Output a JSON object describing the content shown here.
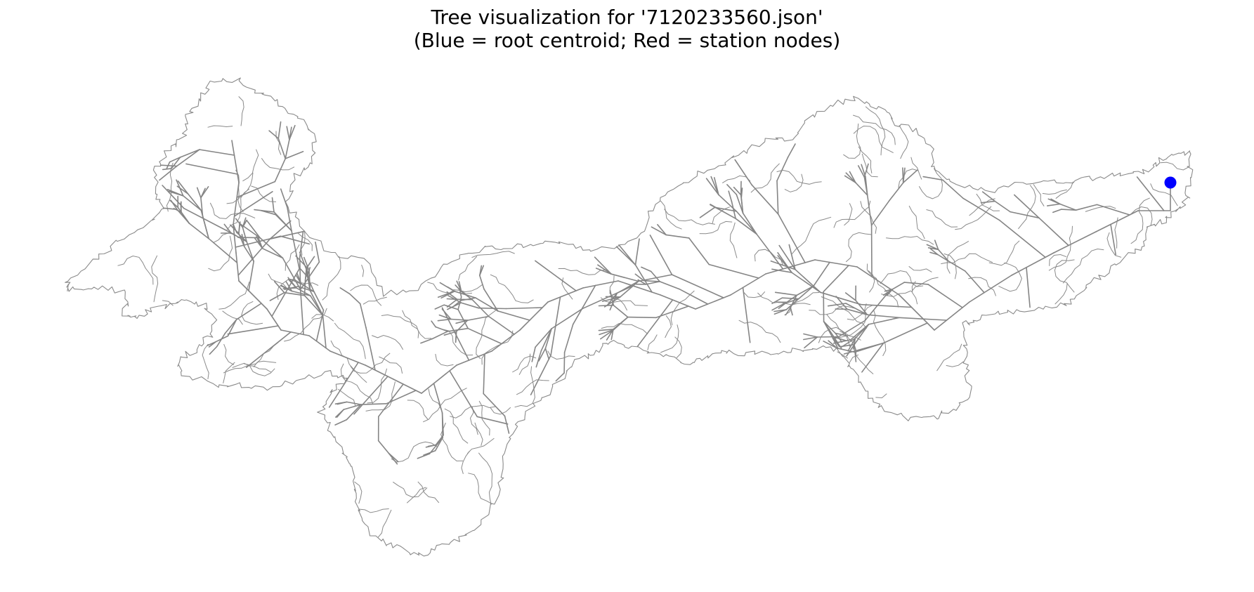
{
  "title": {
    "line1": "Tree visualization for '7120233560.json'",
    "line2": "(Blue = root centroid; Red = station nodes)"
  },
  "colors": {
    "root": "#0000ff",
    "station": "#ff0000",
    "edges": "#858585",
    "boundaries": "#8a8a8a"
  }
}
